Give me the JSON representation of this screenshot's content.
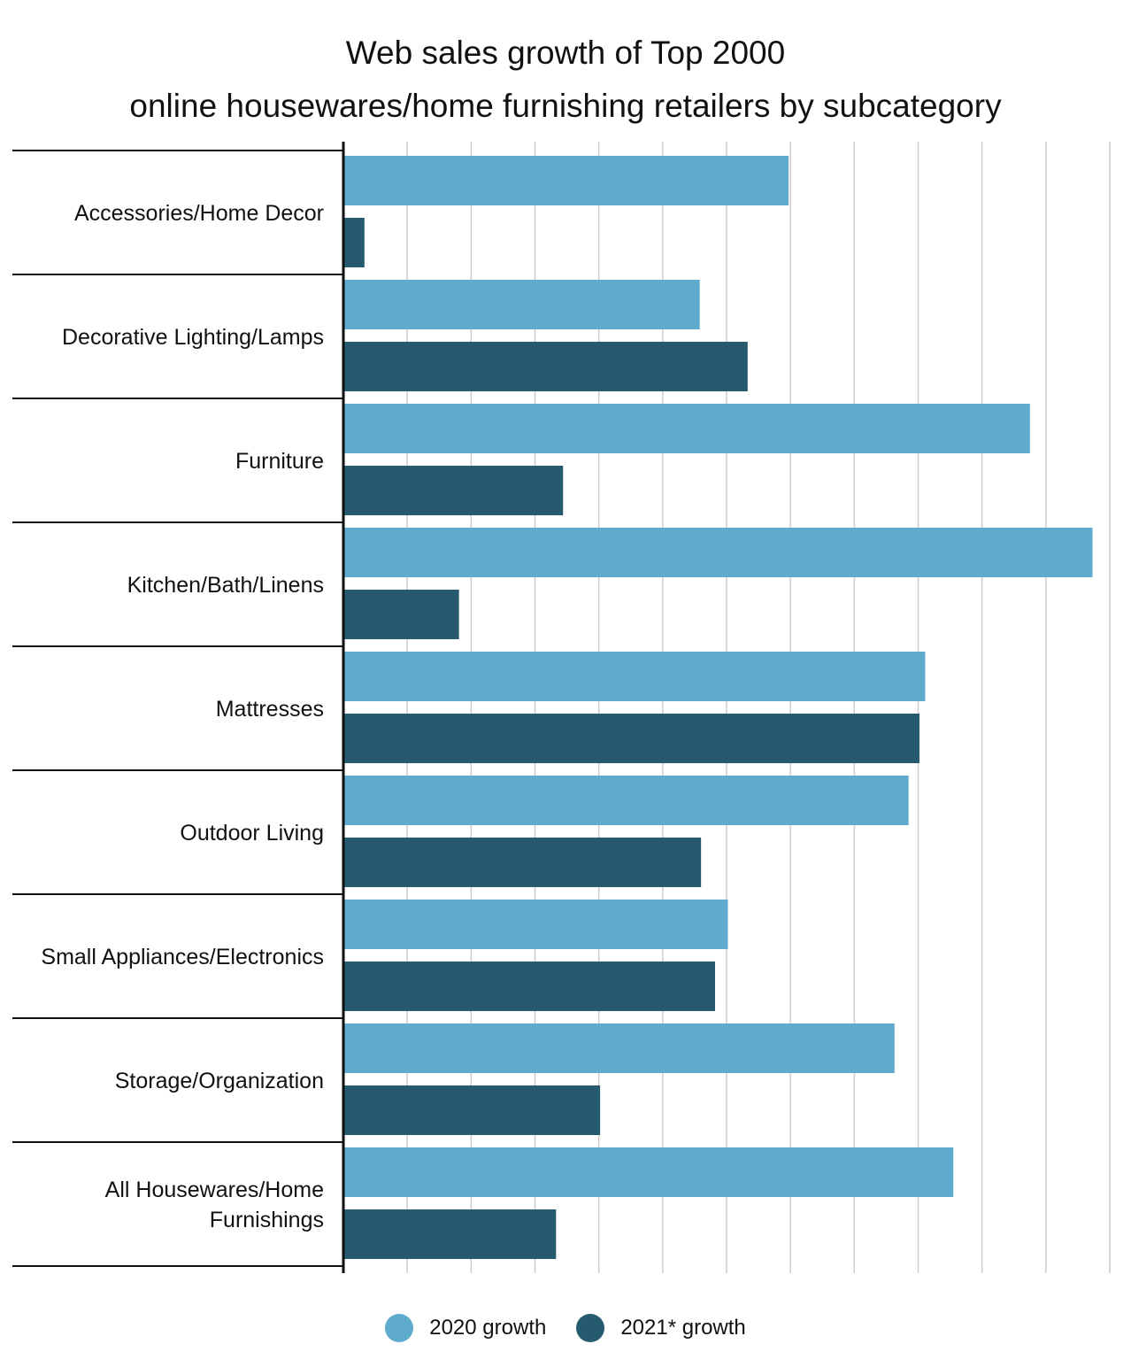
{
  "chart_data": {
    "type": "bar",
    "orientation": "horizontal",
    "title_lines": [
      "Web sales growth of Top 2000",
      "online housewares/home furnishing retailers by subcategory"
    ],
    "categories": [
      [
        "Accessories/Home Decor"
      ],
      [
        "Decorative Lighting/Lamps"
      ],
      [
        "Furniture"
      ],
      [
        "Kitchen/Bath/Linens"
      ],
      [
        "Mattresses"
      ],
      [
        "Outdoor Living"
      ],
      [
        "Small Appliances/Electronics"
      ],
      [
        "Storage/Organization"
      ],
      [
        "All Housewares/Home",
        "Furnishings"
      ]
    ],
    "series": [
      {
        "name": "2020 growth",
        "color": "#5eabcd",
        "values": [
          69.7,
          55.8,
          107.5,
          117.3,
          91.1,
          88.5,
          60.2,
          86.3,
          95.5
        ]
      },
      {
        "name": "2021* growth",
        "color": "#265a6f",
        "values": [
          3.3,
          63.3,
          34.4,
          18.1,
          90.2,
          56.0,
          58.2,
          40.2,
          33.3
        ]
      }
    ],
    "xlim": [
      0,
      120
    ],
    "grid": true,
    "legend_position": "bottom"
  }
}
